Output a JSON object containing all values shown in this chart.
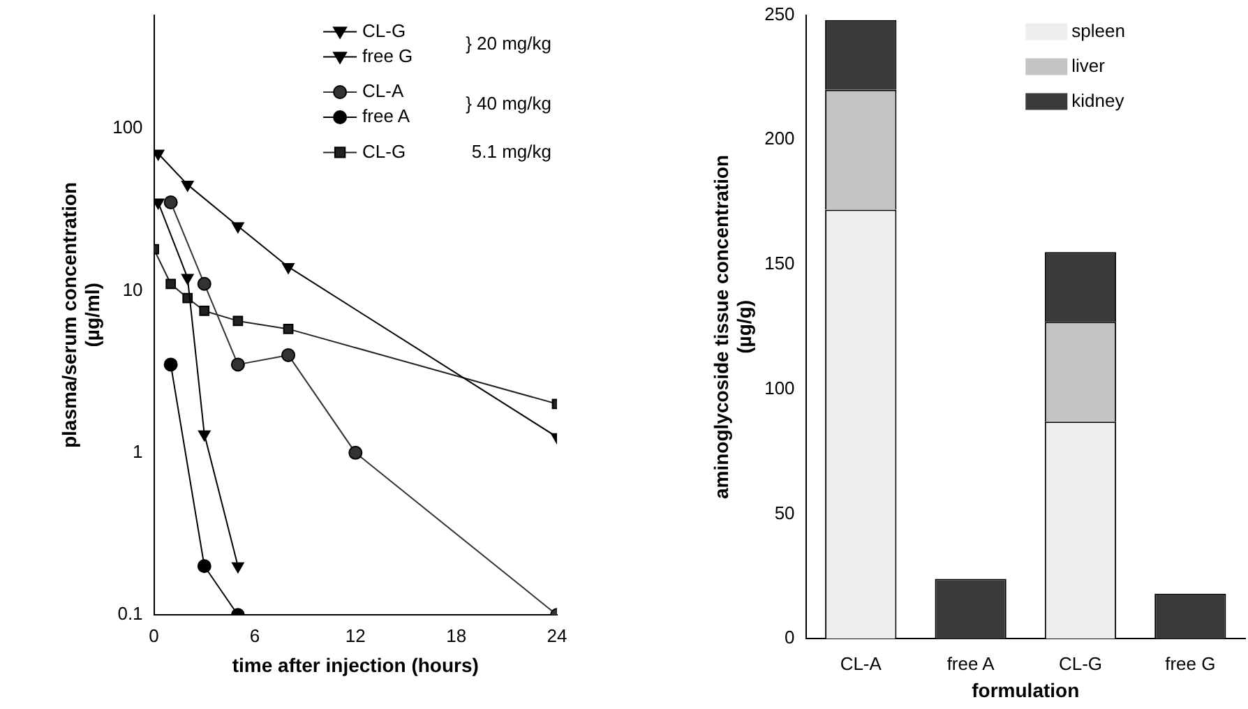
{
  "chart_data": [
    {
      "type": "line",
      "xlabel": "time after injection (hours)",
      "ylabel": "plasma/serum concentration\n(µg/ml)",
      "log": "y",
      "xlim": [
        0,
        24
      ],
      "xticks": [
        0,
        6,
        12,
        18,
        24
      ],
      "ylim": [
        0.1,
        500
      ],
      "yticks": [
        0.1,
        1,
        10,
        100
      ],
      "grid": false,
      "legend": "top right",
      "line_style": "solid",
      "annotations": [
        "} 20 mg/kg",
        "} 40 mg/kg",
        "5.1 mg/kg"
      ],
      "series": [
        {
          "name": "CL-G",
          "color": "#000000",
          "marker": "triangle",
          "x": [
            0.25,
            2,
            5,
            8,
            24
          ],
          "values": [
            70,
            45,
            25,
            14,
            1.25
          ]
        },
        {
          "name": "free G",
          "color": "#000000",
          "marker": "triangle",
          "x": [
            0.25,
            2,
            3,
            5
          ],
          "values": [
            35,
            12,
            1.3,
            0.2
          ]
        },
        {
          "name": "CL-A",
          "color": "#333333",
          "marker": "circle",
          "x": [
            1,
            3,
            5,
            8,
            12,
            24
          ],
          "values": [
            35,
            11,
            3.5,
            4,
            1,
            0.1
          ]
        },
        {
          "name": "free A",
          "color": "#000000",
          "marker": "circle",
          "x": [
            1,
            3,
            5
          ],
          "values": [
            3.5,
            0.2,
            0.1
          ]
        },
        {
          "name": "CL-G",
          "color": "#222222",
          "marker": "square",
          "x": [
            0,
            1,
            2,
            3,
            5,
            8,
            24
          ],
          "values": [
            18,
            11,
            9,
            7.5,
            6.5,
            5.8,
            2
          ]
        }
      ]
    },
    {
      "type": "bar",
      "stacked": true,
      "xlabel": "formulation",
      "ylabel": "aminoglycoside tissue concentration\n(µg/g)",
      "ylim": [
        0,
        250
      ],
      "yticks": [
        0,
        50,
        100,
        150,
        200,
        250
      ],
      "grid": false,
      "legend": "top right",
      "categories": [
        "CL-A",
        "free A",
        "CL-G",
        "free G"
      ],
      "series": [
        {
          "name": "spleen",
          "color": "#eeeeee",
          "values": [
            172,
            0,
            87,
            0
          ]
        },
        {
          "name": "liver",
          "color": "#c4c4c4",
          "values": [
            48,
            0,
            40,
            0
          ]
        },
        {
          "name": "kidney",
          "color": "#3a3a3a",
          "values": [
            28,
            24,
            28,
            18
          ]
        }
      ]
    }
  ]
}
